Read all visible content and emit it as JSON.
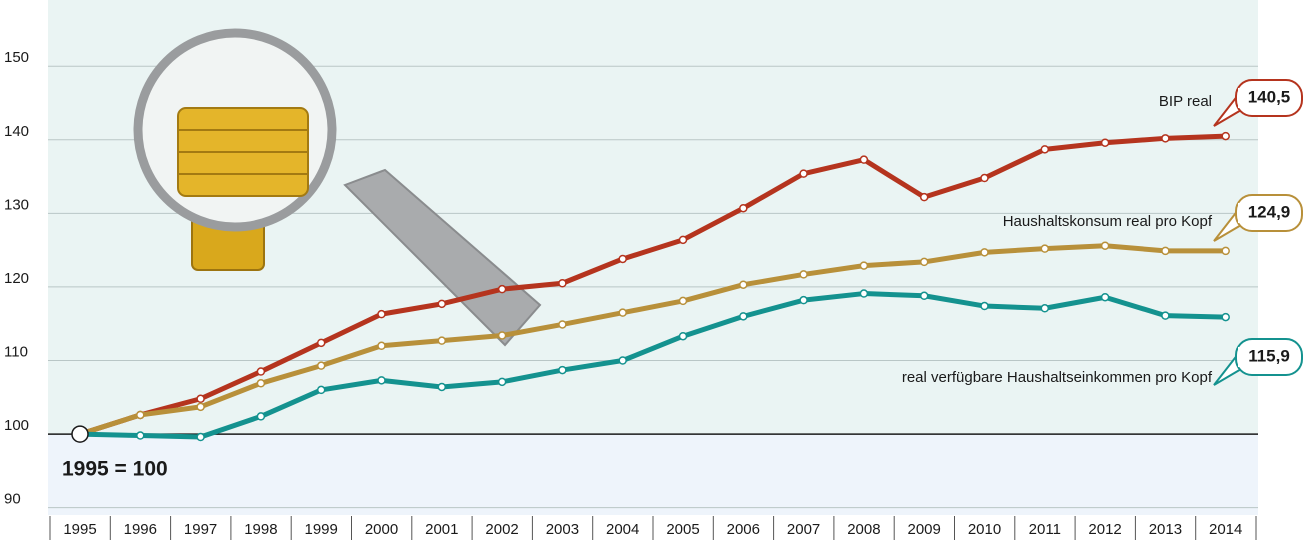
{
  "chart_data": {
    "type": "line",
    "annotation": "1995 = 100",
    "categories": [
      "1995",
      "1996",
      "1997",
      "1998",
      "1999",
      "2000",
      "2001",
      "2002",
      "2003",
      "2004",
      "2005",
      "2006",
      "2007",
      "2008",
      "2009",
      "2010",
      "2011",
      "2012",
      "2013",
      "2014"
    ],
    "ylim": [
      89,
      159
    ],
    "yticks": [
      90,
      100,
      110,
      120,
      130,
      140,
      150
    ],
    "grid": true,
    "series": [
      {
        "name": "BIP real",
        "color": "#b5341e",
        "values": [
          100,
          102.6,
          104.8,
          108.5,
          112.4,
          116.3,
          117.7,
          119.7,
          120.5,
          123.8,
          126.4,
          130.7,
          135.4,
          137.3,
          132.2,
          134.8,
          138.7,
          139.6,
          140.2,
          140.5
        ],
        "value_labels": [
          null,
          null,
          null,
          null,
          null,
          null,
          null,
          null,
          null,
          null,
          null,
          null,
          null,
          null,
          null,
          null,
          null,
          null,
          null,
          "140,5"
        ]
      },
      {
        "name": "Haushaltskonsum real pro Kopf",
        "color": "#b8903a",
        "values": [
          100,
          102.6,
          103.7,
          106.9,
          109.3,
          112.0,
          112.7,
          113.4,
          114.9,
          116.5,
          118.1,
          120.3,
          121.7,
          122.9,
          123.4,
          124.7,
          125.2,
          125.6,
          124.9,
          124.9
        ],
        "value_labels": [
          null,
          null,
          null,
          null,
          null,
          null,
          null,
          null,
          null,
          null,
          null,
          null,
          null,
          null,
          null,
          null,
          null,
          null,
          null,
          "124,9"
        ]
      },
      {
        "name": "real verfügbare Haushaltseinkommen pro Kopf",
        "color": "#14928f",
        "values": [
          100,
          99.8,
          99.6,
          102.4,
          106.0,
          107.3,
          106.4,
          107.1,
          108.7,
          110.0,
          113.3,
          116.0,
          118.2,
          119.1,
          118.8,
          117.4,
          117.1,
          118.6,
          116.1,
          115.9
        ],
        "value_labels": [
          null,
          null,
          null,
          null,
          null,
          null,
          null,
          null,
          null,
          null,
          null,
          null,
          null,
          null,
          null,
          null,
          null,
          null,
          null,
          "115,9"
        ]
      }
    ]
  }
}
